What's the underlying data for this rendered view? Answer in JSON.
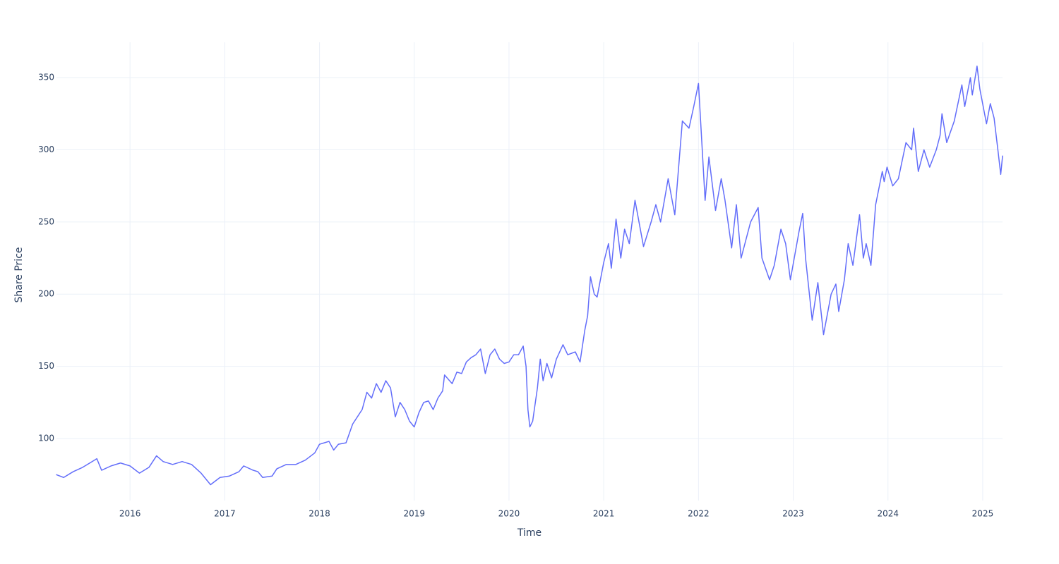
{
  "chart_data": {
    "type": "line",
    "x_label": "Time",
    "y_label": "Share Price",
    "color": "#636efa",
    "grid": true,
    "xlim": [
      2015.224,
      2025.209
    ],
    "xticks": [
      2016,
      2017,
      2018,
      2019,
      2020,
      2021,
      2022,
      2023,
      2024,
      2025
    ],
    "ylim": [
      57,
      374.5
    ],
    "yticks": [
      100,
      150,
      200,
      250,
      300,
      350
    ],
    "x": [
      2015.22,
      2015.3,
      2015.4,
      2015.5,
      2015.6,
      2015.65,
      2015.7,
      2015.8,
      2015.9,
      2016.0,
      2016.1,
      2016.2,
      2016.28,
      2016.35,
      2016.45,
      2016.55,
      2016.65,
      2016.75,
      2016.85,
      2016.95,
      2017.05,
      2017.15,
      2017.2,
      2017.3,
      2017.35,
      2017.4,
      2017.5,
      2017.55,
      2017.65,
      2017.75,
      2017.85,
      2017.95,
      2018.0,
      2018.05,
      2018.1,
      2018.15,
      2018.2,
      2018.28,
      2018.35,
      2018.45,
      2018.5,
      2018.55,
      2018.6,
      2018.65,
      2018.7,
      2018.75,
      2018.8,
      2018.85,
      2018.9,
      2018.95,
      2019.0,
      2019.05,
      2019.1,
      2019.15,
      2019.2,
      2019.25,
      2019.3,
      2019.32,
      2019.4,
      2019.45,
      2019.5,
      2019.55,
      2019.6,
      2019.65,
      2019.7,
      2019.75,
      2019.8,
      2019.85,
      2019.9,
      2019.95,
      2020.0,
      2020.05,
      2020.1,
      2020.15,
      2020.18,
      2020.2,
      2020.22,
      2020.25,
      2020.3,
      2020.33,
      2020.36,
      2020.4,
      2020.45,
      2020.5,
      2020.57,
      2020.62,
      2020.7,
      2020.75,
      2020.8,
      2020.83,
      2020.86,
      2020.9,
      2020.93,
      2021.0,
      2021.05,
      2021.08,
      2021.13,
      2021.18,
      2021.22,
      2021.27,
      2021.33,
      2021.42,
      2021.5,
      2021.55,
      2021.6,
      2021.68,
      2021.75,
      2021.83,
      2021.9,
      2021.95,
      2022.0,
      2022.07,
      2022.11,
      2022.18,
      2022.24,
      2022.28,
      2022.35,
      2022.4,
      2022.45,
      2022.55,
      2022.63,
      2022.67,
      2022.75,
      2022.8,
      2022.87,
      2022.92,
      2022.97,
      2023.06,
      2023.1,
      2023.13,
      2023.2,
      2023.26,
      2023.32,
      2023.4,
      2023.45,
      2023.48,
      2023.54,
      2023.58,
      2023.63,
      2023.7,
      2023.74,
      2023.77,
      2023.82,
      2023.87,
      2023.94,
      2023.96,
      2023.99,
      2024.05,
      2024.11,
      2024.19,
      2024.25,
      2024.27,
      2024.32,
      2024.38,
      2024.44,
      2024.51,
      2024.55,
      2024.57,
      2024.62,
      2024.7,
      2024.78,
      2024.81,
      2024.87,
      2024.89,
      2024.94,
      2024.97,
      2025.04,
      2025.08,
      2025.12,
      2025.16,
      2025.19,
      2025.21
    ],
    "values": [
      75,
      73,
      77,
      80,
      84,
      86,
      78,
      81,
      83,
      81,
      76,
      80,
      88,
      84,
      82,
      84,
      82,
      76,
      68,
      73,
      74,
      77,
      81,
      78,
      77,
      73,
      74,
      79,
      82,
      82,
      85,
      90,
      96,
      97,
      98,
      92,
      96,
      97,
      110,
      120,
      132,
      128,
      138,
      132,
      140,
      135,
      115,
      125,
      120,
      112,
      108,
      118,
      125,
      126,
      120,
      128,
      133,
      144,
      138,
      146,
      145,
      153,
      156,
      158,
      162,
      145,
      158,
      162,
      155,
      152,
      153,
      158,
      158,
      164,
      150,
      120,
      108,
      112,
      135,
      155,
      140,
      152,
      142,
      155,
      165,
      158,
      160,
      153,
      175,
      185,
      212,
      200,
      198,
      222,
      235,
      218,
      252,
      225,
      245,
      235,
      265,
      233,
      250,
      262,
      250,
      280,
      255,
      320,
      315,
      330,
      346,
      265,
      295,
      258,
      280,
      265,
      232,
      262,
      225,
      250,
      260,
      225,
      210,
      220,
      245,
      235,
      210,
      243,
      256,
      225,
      182,
      208,
      172,
      200,
      207,
      188,
      210,
      235,
      220,
      255,
      225,
      235,
      220,
      262,
      285,
      278,
      288,
      275,
      280,
      305,
      300,
      315,
      285,
      300,
      288,
      300,
      310,
      325,
      305,
      320,
      345,
      330,
      350,
      338,
      358,
      342,
      318,
      332,
      322,
      300,
      283,
      296
    ]
  }
}
